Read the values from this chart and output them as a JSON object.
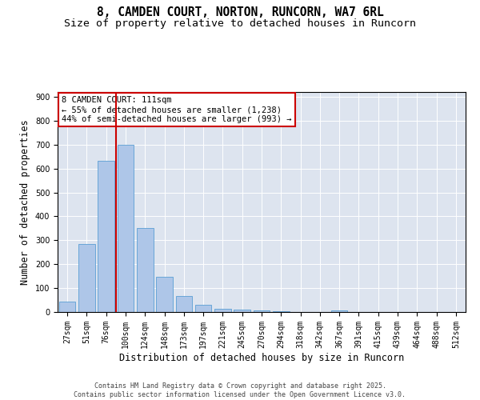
{
  "title_line1": "8, CAMDEN COURT, NORTON, RUNCORN, WA7 6RL",
  "title_line2": "Size of property relative to detached houses in Runcorn",
  "xlabel": "Distribution of detached houses by size in Runcorn",
  "ylabel": "Number of detached properties",
  "bar_labels": [
    "27sqm",
    "51sqm",
    "76sqm",
    "100sqm",
    "124sqm",
    "148sqm",
    "173sqm",
    "197sqm",
    "221sqm",
    "245sqm",
    "270sqm",
    "294sqm",
    "318sqm",
    "342sqm",
    "367sqm",
    "391sqm",
    "415sqm",
    "439sqm",
    "464sqm",
    "488sqm",
    "512sqm"
  ],
  "bar_values": [
    42,
    283,
    633,
    700,
    350,
    147,
    68,
    30,
    15,
    11,
    8,
    5,
    0,
    0,
    6,
    0,
    0,
    0,
    0,
    0,
    0
  ],
  "bar_color": "#aec6e8",
  "bar_edge_color": "#5a9fd4",
  "vline_color": "#cc0000",
  "annotation_text": "8 CAMDEN COURT: 111sqm\n← 55% of detached houses are smaller (1,238)\n44% of semi-detached houses are larger (993) →",
  "annotation_box_color": "#cc0000",
  "ylim": [
    0,
    920
  ],
  "yticks": [
    0,
    100,
    200,
    300,
    400,
    500,
    600,
    700,
    800,
    900
  ],
  "bg_color": "#dde4ef",
  "footer_text": "Contains HM Land Registry data © Crown copyright and database right 2025.\nContains public sector information licensed under the Open Government Licence v3.0.",
  "title_fontsize": 10.5,
  "subtitle_fontsize": 9.5,
  "axis_label_fontsize": 8.5,
  "tick_fontsize": 7,
  "annotation_fontsize": 7.5,
  "footer_fontsize": 6
}
